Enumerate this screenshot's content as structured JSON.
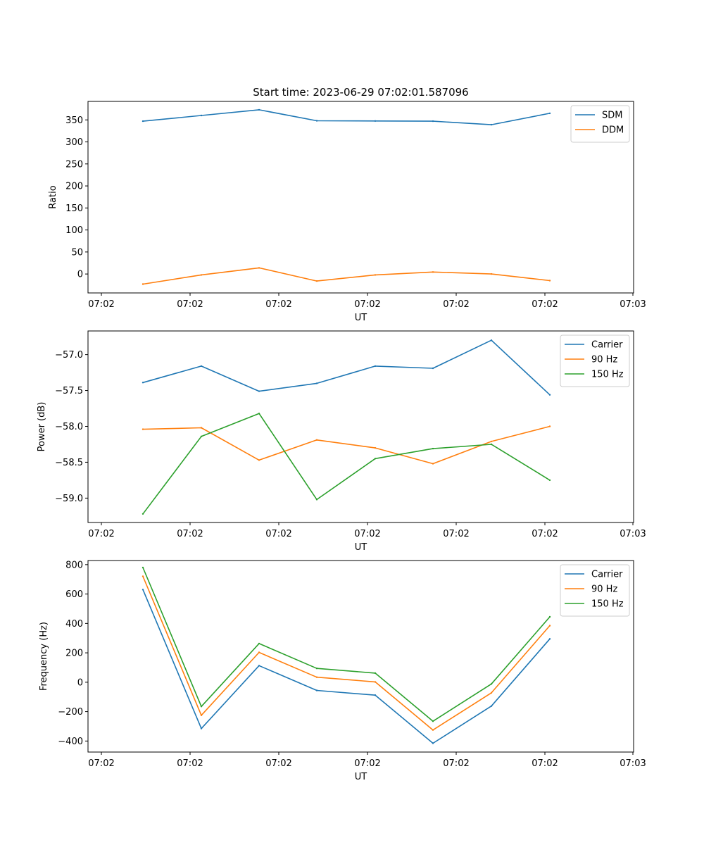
{
  "chart_data": [
    {
      "type": "line",
      "title": "Start time: 2023-06-29 07:02:01.587096",
      "xlabel": "UT",
      "ylabel": "Ratio",
      "x": [
        "07:02:01.6",
        "07:02:01.8",
        "07:02:02.0",
        "07:02:02.2",
        "07:02:02.4",
        "07:02:02.6",
        "07:02:02.8",
        "07:02:03.0"
      ],
      "x_tick_labels": [
        "07:02",
        "07:02",
        "07:02",
        "07:02",
        "07:02",
        "07:02",
        "07:03"
      ],
      "y_ticks": [
        0,
        50,
        100,
        150,
        200,
        250,
        300,
        350
      ],
      "y_tick_labels": [
        "0",
        "50",
        "100",
        "150",
        "200",
        "250",
        "300",
        "350"
      ],
      "ylim": [
        -43,
        392
      ],
      "legend_position": "upper-right",
      "grid": false,
      "series": [
        {
          "name": "SDM",
          "color": "#1f77b4",
          "values": [
            347,
            360,
            373,
            348,
            347.5,
            347,
            339,
            365
          ]
        },
        {
          "name": "DDM",
          "color": "#ff7f0e",
          "values": [
            -23,
            -2,
            14,
            -16,
            -2,
            4.5,
            0,
            -15
          ]
        }
      ]
    },
    {
      "type": "line",
      "title": "",
      "xlabel": "UT",
      "ylabel": "Power (dB)",
      "x": [
        "07:02:01.6",
        "07:02:01.8",
        "07:02:02.0",
        "07:02:02.2",
        "07:02:02.4",
        "07:02:02.6",
        "07:02:02.8",
        "07:02:03.0"
      ],
      "x_tick_labels": [
        "07:02",
        "07:02",
        "07:02",
        "07:02",
        "07:02",
        "07:02",
        "07:03"
      ],
      "y_ticks": [
        -59.0,
        -58.5,
        -58.0,
        -57.5,
        -57.0
      ],
      "y_tick_labels": [
        "−59.0",
        "−58.5",
        "−58.0",
        "−57.5",
        "−57.0"
      ],
      "ylim": [
        -59.34,
        -56.67
      ],
      "legend_position": "upper-right",
      "grid": false,
      "series": [
        {
          "name": "Carrier",
          "color": "#1f77b4",
          "values": [
            -57.39,
            -57.16,
            -57.51,
            -57.4,
            -57.16,
            -57.19,
            -56.8,
            -57.56
          ]
        },
        {
          "name": "90 Hz",
          "color": "#ff7f0e",
          "values": [
            -58.04,
            -58.02,
            -58.47,
            -58.19,
            -58.3,
            -58.52,
            -58.21,
            -58.0
          ]
        },
        {
          "name": "150 Hz",
          "color": "#2ca02c",
          "values": [
            -59.22,
            -58.14,
            -57.82,
            -59.02,
            -58.45,
            -58.31,
            -58.25,
            -58.75
          ]
        }
      ]
    },
    {
      "type": "line",
      "title": "",
      "xlabel": "UT",
      "ylabel": "Frequency (Hz)",
      "x": [
        "07:02:01.6",
        "07:02:01.8",
        "07:02:02.0",
        "07:02:02.2",
        "07:02:02.4",
        "07:02:02.6",
        "07:02:02.8",
        "07:02:03.0"
      ],
      "x_tick_labels": [
        "07:02",
        "07:02",
        "07:02",
        "07:02",
        "07:02",
        "07:02",
        "07:03"
      ],
      "y_ticks": [
        -400,
        -200,
        0,
        200,
        400,
        600,
        800
      ],
      "y_tick_labels": [
        "−400",
        "−200",
        "0",
        "200",
        "400",
        "600",
        "800"
      ],
      "ylim": [
        -475,
        828
      ],
      "legend_position": "upper-right",
      "grid": false,
      "series": [
        {
          "name": "Carrier",
          "color": "#1f77b4",
          "values": [
            630,
            -315,
            113,
            -56,
            -88,
            -415,
            -162,
            295
          ]
        },
        {
          "name": "90 Hz",
          "color": "#ff7f0e",
          "values": [
            720,
            -225,
            203,
            34,
            2,
            -325,
            -72,
            385
          ]
        },
        {
          "name": "150 Hz",
          "color": "#2ca02c",
          "values": [
            780,
            -165,
            263,
            94,
            62,
            -265,
            -12,
            445
          ]
        }
      ]
    }
  ]
}
